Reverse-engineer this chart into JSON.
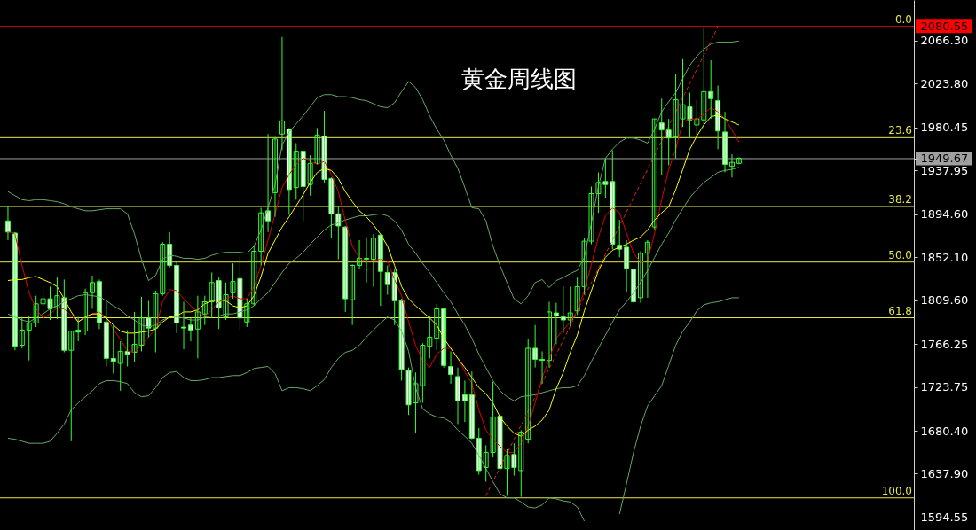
{
  "chart_data": {
    "type": "candlestick",
    "title": "黄金周线图",
    "color": "#33ff33",
    "tick_labels": "y",
    "categories": [
      null,
      null,
      null,
      null,
      null,
      null,
      null,
      null,
      null,
      null,
      null,
      null,
      null,
      null,
      null,
      null,
      null,
      null,
      null,
      null,
      null,
      null,
      null,
      null,
      null,
      null,
      null,
      null,
      null,
      null,
      null,
      null,
      null,
      null,
      null,
      null,
      null,
      null,
      null,
      null,
      null,
      null,
      null,
      null,
      null,
      null,
      null,
      null,
      null,
      null,
      null,
      null,
      null,
      null,
      null,
      null,
      null,
      null,
      null,
      null,
      null,
      null,
      null,
      null,
      null,
      null,
      null,
      null,
      null,
      null,
      null,
      null,
      null,
      null,
      null,
      null,
      null,
      null,
      null,
      null,
      null,
      null,
      null,
      null,
      null,
      null,
      null,
      null,
      null,
      null,
      null,
      null,
      null,
      null,
      null,
      null,
      null,
      null,
      null,
      null,
      null,
      null,
      null,
      null,
      null
    ],
    "ohlc": [
      [
        1888,
        1903,
        1869,
        1877
      ],
      [
        1876,
        1877,
        1760,
        1764
      ],
      [
        1765,
        1793,
        1762,
        1780
      ],
      [
        1780,
        1794,
        1750,
        1787
      ],
      [
        1787,
        1814,
        1783,
        1806
      ],
      [
        1806,
        1823,
        1791,
        1811
      ],
      [
        1811,
        1823,
        1790,
        1801
      ],
      [
        1802,
        1832,
        1791,
        1814
      ],
      [
        1812,
        1830,
        1758,
        1760
      ],
      [
        1760,
        1779,
        1670,
        1779
      ],
      [
        1780,
        1793,
        1769,
        1778
      ],
      [
        1779,
        1821,
        1775,
        1817
      ],
      [
        1817,
        1834,
        1801,
        1827
      ],
      [
        1828,
        1830,
        1781,
        1787
      ],
      [
        1788,
        1808,
        1744,
        1752
      ],
      [
        1752,
        1785,
        1737,
        1749
      ],
      [
        1747,
        1769,
        1720,
        1759
      ],
      [
        1759,
        1780,
        1744,
        1756
      ],
      [
        1758,
        1798,
        1748,
        1766
      ],
      [
        1765,
        1813,
        1759,
        1792
      ],
      [
        1792,
        1809,
        1773,
        1782
      ],
      [
        1782,
        1819,
        1758,
        1816
      ],
      [
        1816,
        1867,
        1814,
        1865
      ],
      [
        1865,
        1877,
        1842,
        1844
      ],
      [
        1844,
        1848,
        1777,
        1787
      ],
      [
        1783,
        1808,
        1761,
        1782
      ],
      [
        1785,
        1792,
        1769,
        1780
      ],
      [
        1781,
        1814,
        1752,
        1798
      ],
      [
        1796,
        1814,
        1785,
        1808
      ],
      [
        1808,
        1837,
        1792,
        1827
      ],
      [
        1829,
        1832,
        1781,
        1802
      ],
      [
        1793,
        1827,
        1790,
        1815
      ],
      [
        1817,
        1846,
        1811,
        1828
      ],
      [
        1831,
        1853,
        1780,
        1792
      ],
      [
        1788,
        1811,
        1783,
        1806
      ],
      [
        1806,
        1863,
        1804,
        1858
      ],
      [
        1858,
        1901,
        1844,
        1896
      ],
      [
        1898,
        1974,
        1877,
        1888
      ],
      [
        1916,
        1971,
        1892,
        1969
      ],
      [
        1974,
        2070,
        1958,
        1987
      ],
      [
        1979,
        1980,
        1894,
        1919
      ],
      [
        1921,
        1965,
        1909,
        1957
      ],
      [
        1957,
        1958,
        1888,
        1922
      ],
      [
        1924,
        1953,
        1913,
        1945
      ],
      [
        1945,
        1980,
        1944,
        1973
      ],
      [
        1972,
        1997,
        1926,
        1929
      ],
      [
        1930,
        1931,
        1871,
        1895
      ],
      [
        1895,
        1903,
        1850,
        1883
      ],
      [
        1882,
        1883,
        1798,
        1811
      ],
      [
        1810,
        1845,
        1785,
        1844
      ],
      [
        1844,
        1869,
        1840,
        1851
      ],
      [
        1850,
        1872,
        1827,
        1851
      ],
      [
        1850,
        1875,
        1823,
        1871
      ],
      [
        1874,
        1875,
        1804,
        1838
      ],
      [
        1837,
        1844,
        1815,
        1825
      ],
      [
        1837,
        1840,
        1785,
        1809
      ],
      [
        1809,
        1811,
        1730,
        1741
      ],
      [
        1740,
        1743,
        1696,
        1706
      ],
      [
        1708,
        1738,
        1678,
        1727
      ],
      [
        1725,
        1767,
        1708,
        1765
      ],
      [
        1764,
        1794,
        1752,
        1773
      ],
      [
        1772,
        1806,
        1760,
        1801
      ],
      [
        1801,
        1802,
        1743,
        1745
      ],
      [
        1744,
        1759,
        1727,
        1736
      ],
      [
        1734,
        1743,
        1687,
        1710
      ],
      [
        1716,
        1730,
        1689,
        1710
      ],
      [
        1716,
        1739,
        1672,
        1673
      ],
      [
        1673,
        1683,
        1637,
        1641
      ],
      [
        1644,
        1666,
        1630,
        1659
      ],
      [
        1659,
        1729,
        1654,
        1694
      ],
      [
        1695,
        1698,
        1628,
        1643
      ],
      [
        1643,
        1662,
        1616,
        1656
      ],
      [
        1657,
        1668,
        1636,
        1644
      ],
      [
        1641,
        1681,
        1615,
        1679
      ],
      [
        1672,
        1771,
        1668,
        1762
      ],
      [
        1762,
        1785,
        1743,
        1751
      ],
      [
        1751,
        1759,
        1727,
        1750
      ],
      [
        1750,
        1808,
        1743,
        1798
      ],
      [
        1797,
        1807,
        1766,
        1794
      ],
      [
        1793,
        1823,
        1777,
        1790
      ],
      [
        1790,
        1823,
        1784,
        1797
      ],
      [
        1799,
        1832,
        1795,
        1823
      ],
      [
        1823,
        1871,
        1815,
        1868
      ],
      [
        1868,
        1922,
        1865,
        1915
      ],
      [
        1915,
        1936,
        1896,
        1926
      ],
      [
        1927,
        1950,
        1911,
        1924
      ],
      [
        1927,
        1958,
        1860,
        1865
      ],
      [
        1864,
        1889,
        1852,
        1860
      ],
      [
        1862,
        1869,
        1817,
        1841
      ],
      [
        1840,
        1841,
        1807,
        1808
      ],
      [
        1812,
        1858,
        1807,
        1856
      ],
      [
        1856,
        1869,
        1812,
        1867
      ],
      [
        1882,
        1989,
        1879,
        1989
      ],
      [
        1985,
        2009,
        1933,
        1978
      ],
      [
        1978,
        1989,
        1943,
        1970
      ],
      [
        1971,
        2033,
        1950,
        2008
      ],
      [
        1989,
        2048,
        1981,
        2003
      ],
      [
        2001,
        2015,
        1970,
        1988
      ],
      [
        1983,
        2008,
        1970,
        1989
      ],
      [
        1988,
        2079,
        1980,
        2016
      ],
      [
        2016,
        2047,
        1989,
        2009
      ],
      [
        2007,
        2022,
        1959,
        1977
      ],
      [
        1976,
        1996,
        1936,
        1944
      ],
      [
        1942,
        1954,
        1931,
        1946
      ],
      [
        1945,
        1951,
        1944,
        1950
      ]
    ],
    "series": [
      {
        "type": "line",
        "color": "#66a866",
        "values": [
          1917,
          1913,
          1909,
          1908,
          1909,
          1909,
          1908,
          1907,
          1905,
          1902,
          1900,
          1898,
          1898,
          1899,
          1900,
          1900,
          1900,
          1895,
          1875,
          1850,
          1829,
          1834,
          1850,
          1854,
          1853,
          1851,
          1851,
          1850,
          1851,
          1854,
          1856,
          1857,
          1857,
          1857,
          1856,
          1863,
          1879,
          1901,
          1924,
          1963,
          1976,
          1984,
          1992,
          2001,
          2010,
          2013,
          2013,
          2011,
          2011,
          2010,
          2008,
          2007,
          2004,
          2001,
          2000,
          2005,
          2016,
          2026,
          2020,
          2008,
          1992,
          1979,
          1968,
          1953,
          1940,
          1921,
          1901,
          1900,
          1888,
          1863,
          1844,
          1827,
          1811,
          1806,
          1814,
          1827,
          1830,
          1822,
          1829,
          1832,
          1836,
          1839,
          1852,
          1886,
          1922,
          1950,
          1959,
          1966,
          1970,
          1970,
          1968,
          1965,
          1979,
          1996,
          2006,
          2015,
          2029,
          2042,
          2051,
          2058,
          2063,
          2065,
          2065,
          2065,
          2066
        ]
      },
      {
        "type": "line",
        "color": "#66a866",
        "values": [
          1796,
          1793,
          1790,
          1788,
          1792,
          1796,
          1801,
          1804,
          1808,
          1811,
          1814,
          1815,
          1814,
          1813,
          1809,
          1804,
          1800,
          1794,
          1790,
          1785,
          1783,
          1785,
          1790,
          1793,
          1793,
          1792,
          1790,
          1790,
          1793,
          1794,
          1794,
          1796,
          1796,
          1798,
          1800,
          1804,
          1811,
          1817,
          1827,
          1837,
          1846,
          1851,
          1857,
          1865,
          1872,
          1879,
          1884,
          1886,
          1889,
          1891,
          1893,
          1893,
          1894,
          1895,
          1893,
          1888,
          1879,
          1865,
          1856,
          1846,
          1837,
          1827,
          1817,
          1808,
          1796,
          1785,
          1772,
          1756,
          1743,
          1730,
          1720,
          1714,
          1710,
          1714,
          1715,
          1716,
          1718,
          1720,
          1722,
          1723,
          1723,
          1725,
          1735,
          1749,
          1762,
          1775,
          1788,
          1800,
          1808,
          1817,
          1827,
          1839,
          1852,
          1865,
          1876,
          1889,
          1900,
          1911,
          1919,
          1926,
          1931,
          1936,
          1938,
          1939,
          1941
        ]
      },
      {
        "type": "line",
        "color": "#66a866",
        "values": [
          1673,
          1672,
          1670,
          1668,
          1668,
          1668,
          1670,
          1678,
          1687,
          1701,
          1708,
          1714,
          1720,
          1727,
          1730,
          1730,
          1729,
          1727,
          1718,
          1714,
          1715,
          1723,
          1733,
          1738,
          1739,
          1733,
          1730,
          1730,
          1731,
          1733,
          1733,
          1734,
          1735,
          1735,
          1738,
          1742,
          1743,
          1744,
          1737,
          1720,
          1723,
          1723,
          1722,
          1720,
          1725,
          1731,
          1743,
          1752,
          1758,
          1760,
          1765,
          1773,
          1780,
          1787,
          1793,
          1790,
          1779,
          1759,
          1723,
          1702,
          1697,
          1694,
          1693,
          1689,
          1681,
          1675,
          1668,
          1656,
          1643,
          1630,
          1618,
          1614,
          1614,
          1610,
          1605,
          1604,
          1607,
          1614,
          1613,
          1611,
          1610,
          1605,
          1591,
          null,
          null,
          null,
          null,
          1598,
          1628,
          1659,
          1685,
          1705,
          1715,
          1725,
          1745,
          1765,
          1779,
          1788,
          1799,
          1805,
          1807,
          1808,
          1810,
          1812,
          1812
        ]
      },
      {
        "type": "line",
        "color": "#e00000",
        "values": [
          1877,
          1875,
          1844,
          1817,
          1801,
          1792,
          1796,
          1802,
          1801,
          1794,
          1788,
          1793,
          1796,
          1798,
          1792,
          1781,
          1771,
          1759,
          1758,
          1765,
          1773,
          1781,
          1808,
          1820,
          1819,
          1811,
          1804,
          1798,
          1793,
          1800,
          1808,
          1811,
          1814,
          1811,
          1811,
          1823,
          1844,
          1869,
          1895,
          1921,
          1934,
          1944,
          1950,
          1947,
          1944,
          1947,
          1934,
          1917,
          1888,
          1863,
          1851,
          1848,
          1849,
          1850,
          1848,
          1830,
          1814,
          1788,
          1765,
          1750,
          1743,
          1756,
          1762,
          1762,
          1752,
          1739,
          1727,
          1701,
          1681,
          1672,
          1665,
          1659,
          1659,
          1668,
          1685,
          1708,
          1733,
          1751,
          1772,
          1780,
          1788,
          1799,
          1819,
          1845,
          1872,
          1893,
          1901,
          1896,
          1876,
          1856,
          1847,
          1849,
          1876,
          1909,
          1939,
          1959,
          1986,
          1989,
          1988,
          1994,
          2000,
          1996,
          1989,
          1978,
          1966
        ]
      },
      {
        "type": "line",
        "color": "#ffff00",
        "values": [
          1829,
          1830,
          1830,
          1832,
          1833,
          1830,
          1827,
          1823,
          1811,
          1798,
          1788,
          1793,
          1796,
          1796,
          1792,
          1785,
          1779,
          1777,
          1777,
          1778,
          1779,
          1781,
          1788,
          1793,
          1794,
          1798,
          1798,
          1800,
          1806,
          1809,
          1810,
          1809,
          1804,
          1802,
          1804,
          1814,
          1833,
          1856,
          1869,
          1882,
          1892,
          1903,
          1914,
          1926,
          1936,
          1940,
          1938,
          1930,
          1917,
          1907,
          1898,
          1892,
          1884,
          1875,
          1863,
          1844,
          1823,
          1811,
          1804,
          1798,
          1792,
          1785,
          1772,
          1762,
          1752,
          1743,
          1733,
          1723,
          1717,
          1708,
          1694,
          1685,
          1678,
          1675,
          1681,
          1685,
          1691,
          1701,
          1722,
          1738,
          1758,
          1775,
          1799,
          1819,
          1839,
          1852,
          1859,
          1862,
          1865,
          1869,
          1872,
          1879,
          1889,
          1896,
          1902,
          1919,
          1939,
          1959,
          1972,
          1983,
          1991,
          1993,
          1989,
          1986,
          1983
        ]
      },
      {
        "type": "line",
        "color": "#e02020",
        "line_style": "dashed",
        "values": [
          null,
          null,
          null,
          null,
          null,
          null,
          null,
          null,
          null,
          null,
          null,
          null,
          null,
          null,
          null,
          null,
          null,
          null,
          null,
          null,
          null,
          null,
          null,
          null,
          null,
          null,
          null,
          null,
          null,
          null,
          null,
          null,
          null,
          null,
          null,
          null,
          null,
          null,
          null,
          null,
          null,
          null,
          null,
          null,
          null,
          null,
          null,
          null,
          null,
          null,
          null,
          null,
          null,
          null,
          null,
          null,
          null,
          null,
          null,
          null,
          null,
          null,
          null,
          null,
          null,
          null,
          null,
          null,
          1616,
          1630,
          1644,
          1658,
          1672,
          1686,
          1700,
          1714,
          1728,
          1742,
          1756,
          1770,
          1784,
          1799,
          1813,
          1827,
          1841,
          1855,
          1869,
          1883,
          1897,
          1911,
          1925,
          1939,
          1953,
          1967,
          1982,
          1996,
          2010,
          2024,
          2038,
          2052,
          2066,
          2080,
          null,
          null,
          null
        ]
      }
    ],
    "ylim": [
      1582.2,
      2106.6
    ],
    "yticks": [
      1594.55,
      {
        "value": 1637.9,
        "label": "1637.90"
      },
      {
        "value": 1680.4,
        "label": "1680.40"
      },
      1723.75,
      1766.25,
      {
        "value": 1809.6,
        "label": "1809.60"
      },
      {
        "value": 1852.1,
        "label": "1852.10"
      },
      {
        "value": 1894.6,
        "label": "1894.60"
      },
      1937.95,
      1980.45,
      {
        "value": 2023.8,
        "label": "2023.80"
      },
      {
        "value": 2066.3,
        "label": "2066.30"
      },
      2080.55,
      1949.67
    ],
    "ref_lines": [
      {
        "axis": "y",
        "value": 2080.55,
        "color": "#ff0000"
      },
      {
        "axis": "y",
        "value": 1949.67,
        "color": "#a0a0a0"
      },
      {
        "axis": "y",
        "value": 1970.4,
        "color": "#e6e64d"
      },
      {
        "axis": "y",
        "value": 1902.3,
        "color": "#e6e64d"
      },
      {
        "axis": "y",
        "value": 1847.3,
        "color": "#e6e64d"
      },
      {
        "axis": "y",
        "value": 1792.2,
        "color": "#e6e64d"
      },
      {
        "axis": "y",
        "value": 1614,
        "color": "#e6e64d"
      }
    ],
    "annotations": [
      {
        "text": "0.0",
        "y": 2080.55
      },
      {
        "text": "23.6",
        "y": 1970.4
      },
      {
        "text": "38.2",
        "y": 1902.3
      },
      {
        "text": "50.0",
        "y": 1847.3
      },
      {
        "text": "61.8",
        "y": 1792.2
      },
      {
        "text": "100.0",
        "y": 1614
      }
    ]
  }
}
